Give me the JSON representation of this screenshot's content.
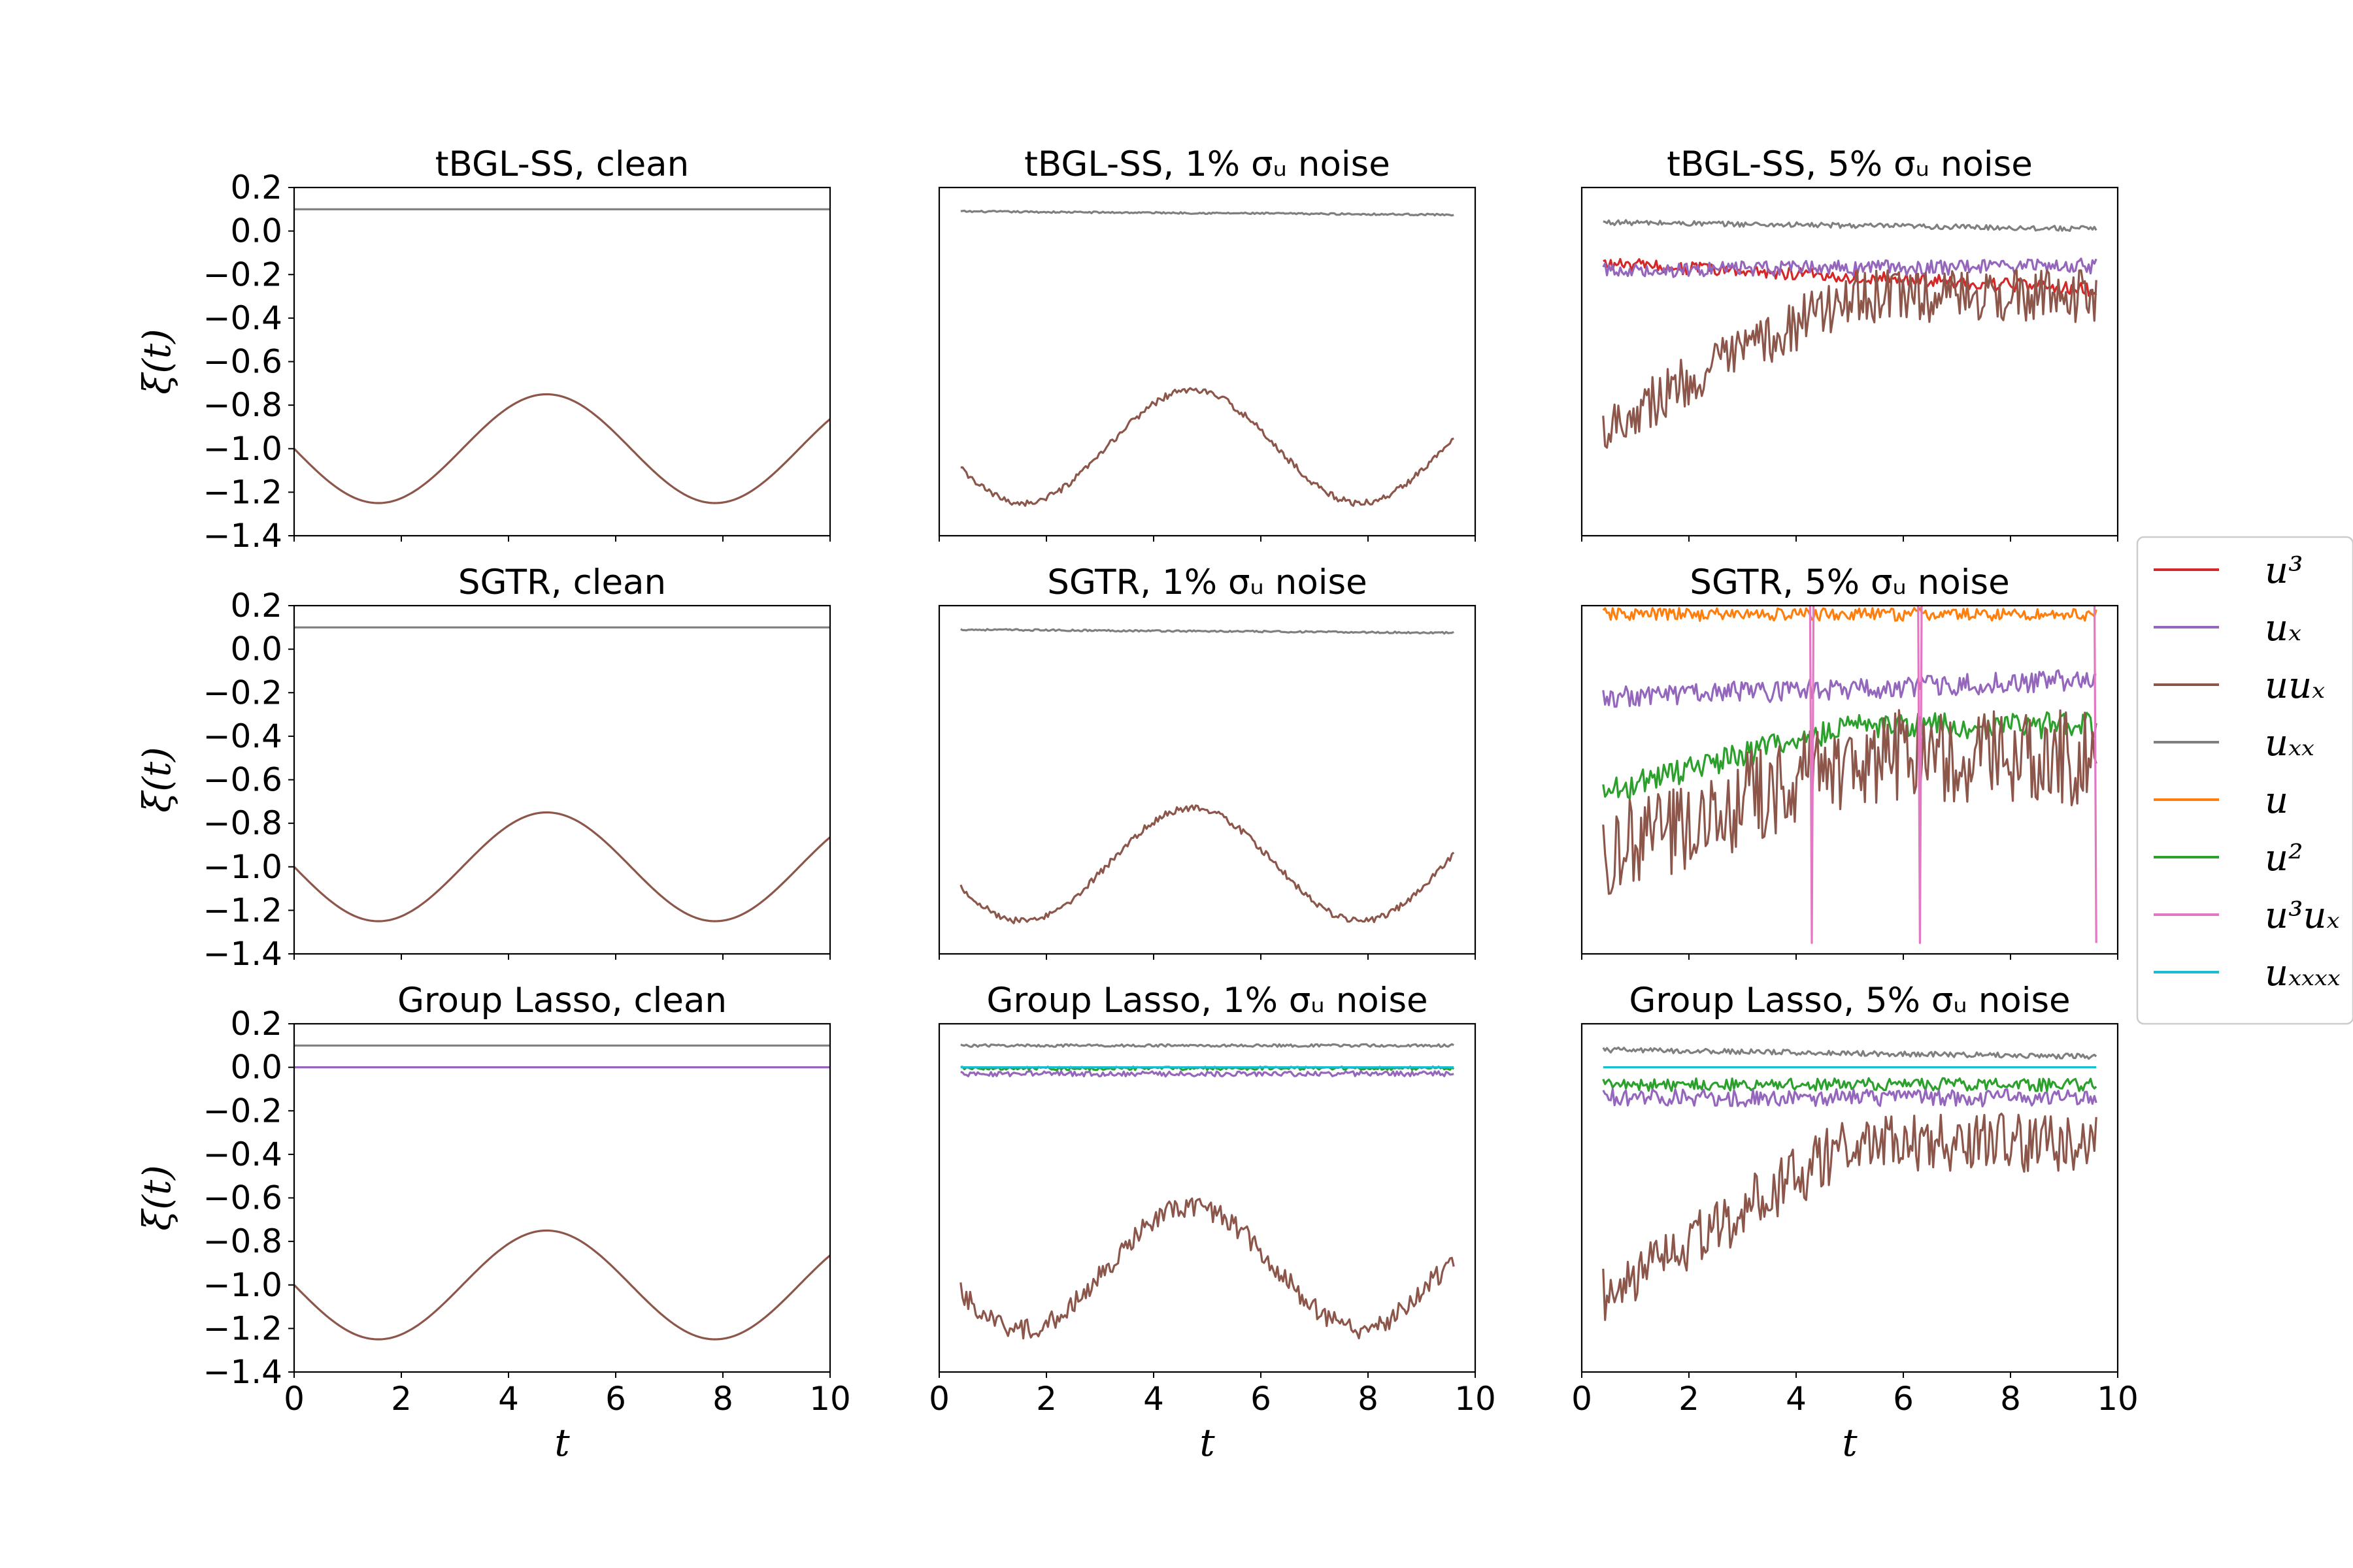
{
  "chart_data": {
    "type": "line",
    "colors": {
      "u^3": "#d62728",
      "u_x": "#9467bd",
      "uu_x": "#8c564b",
      "u_xx": "#7f7f7f",
      "u": "#ff7f0e",
      "u^2": "#2ca02c",
      "u^3u_x": "#e377c2",
      "u_xxxx": "#17becf"
    },
    "legend": [
      {
        "key": "u^3",
        "label": "u³"
      },
      {
        "key": "u_x",
        "label": "uₓ"
      },
      {
        "key": "uu_x",
        "label": "uuₓ"
      },
      {
        "key": "u_xx",
        "label": "uₓₓ"
      },
      {
        "key": "u",
        "label": "u"
      },
      {
        "key": "u^2",
        "label": "u²"
      },
      {
        "key": "u^3u_x",
        "label": "u³uₓ"
      },
      {
        "key": "u_xxxx",
        "label": "uₓₓₓₓ"
      }
    ],
    "legend_position": "right, outside, centered",
    "xlabel": "t",
    "ylabel": "ξ(t)",
    "xlim": [
      0,
      10
    ],
    "ylim": [
      -1.4,
      0.2
    ],
    "xticks": [
      "0",
      "2",
      "4",
      "6",
      "8",
      "10"
    ],
    "yticks": [
      "0.2",
      "0.0",
      "−0.2",
      "−0.4",
      "−0.6",
      "−0.8",
      "−1.0",
      "−1.2",
      "−1.4"
    ],
    "panels": [
      {
        "row": 0,
        "col": 0,
        "title": "tBGL-SS, clean",
        "t_range": [
          0,
          10
        ],
        "series": [
          {
            "key": "u_xx",
            "kind": "const",
            "value": 0.1
          },
          {
            "key": "uu_x",
            "kind": "sine",
            "offset": -1.0,
            "amp": -0.25
          }
        ]
      },
      {
        "row": 0,
        "col": 1,
        "title": "tBGL-SS, 1% σᵤ noise",
        "t_range": [
          0.4,
          9.6
        ],
        "series": [
          {
            "key": "u_xx",
            "kind": "const",
            "value": 0.09,
            "noise": 0.004,
            "trend": -0.015
          },
          {
            "key": "uu_x",
            "kind": "sine",
            "offset": -0.99,
            "amp": -0.26,
            "noise": 0.015
          }
        ]
      },
      {
        "row": 0,
        "col": 2,
        "title": "tBGL-SS, 5% σᵤ noise",
        "t_range": [
          0.4,
          9.6
        ],
        "series": [
          {
            "key": "u_xx",
            "kind": "const",
            "value": 0.04,
            "noise": 0.012,
            "trend": -0.03
          },
          {
            "key": "u^3",
            "kind": "const",
            "value": -0.15,
            "noise": 0.03,
            "trend": -0.12
          },
          {
            "key": "u_x",
            "kind": "const",
            "value": -0.18,
            "noise": 0.035,
            "trend": 0.02
          },
          {
            "key": "uu_x",
            "kind": "ramp",
            "start": -0.9,
            "end": -0.3,
            "noise": 0.12
          }
        ]
      },
      {
        "row": 1,
        "col": 0,
        "title": "SGTR, clean",
        "t_range": [
          0,
          10
        ],
        "series": [
          {
            "key": "u_xx",
            "kind": "const",
            "value": 0.1
          },
          {
            "key": "uu_x",
            "kind": "sine",
            "offset": -1.0,
            "amp": -0.25
          }
        ]
      },
      {
        "row": 1,
        "col": 1,
        "title": "SGTR,  1% σᵤ noise",
        "t_range": [
          0.4,
          9.6
        ],
        "series": [
          {
            "key": "u_xx",
            "kind": "const",
            "value": 0.09,
            "noise": 0.004,
            "trend": -0.015
          },
          {
            "key": "uu_x",
            "kind": "sine",
            "offset": -0.99,
            "amp": -0.26,
            "noise": 0.015
          }
        ]
      },
      {
        "row": 1,
        "col": 2,
        "title": "SGTR, 5% σᵤ noise",
        "t_range": [
          0.4,
          9.6
        ],
        "series": [
          {
            "key": "u",
            "kind": "const",
            "value": 0.16,
            "noise": 0.03
          },
          {
            "key": "u_x",
            "kind": "const",
            "value": -0.22,
            "noise": 0.05,
            "trend": 0.08
          },
          {
            "key": "u^2",
            "kind": "ramp",
            "start": -0.66,
            "end": -0.35,
            "noise": 0.06
          },
          {
            "key": "uu_x",
            "kind": "ramp",
            "start": -0.95,
            "end": -0.5,
            "noise": 0.22
          },
          {
            "key": "u^3u_x",
            "kind": "spikes",
            "value": 0.2,
            "spikes_at": [
              4.3,
              6.3,
              9.6
            ]
          }
        ]
      },
      {
        "row": 2,
        "col": 0,
        "title": "Group Lasso, clean",
        "t_range": [
          0,
          10
        ],
        "series": [
          {
            "key": "u_xx",
            "kind": "const",
            "value": 0.1
          },
          {
            "key": "u_x",
            "kind": "const",
            "value": 0.0
          },
          {
            "key": "uu_x",
            "kind": "sine",
            "offset": -1.0,
            "amp": -0.25
          }
        ]
      },
      {
        "row": 2,
        "col": 1,
        "title": "Group Lasso, 1% σᵤ noise",
        "t_range": [
          0.4,
          9.6
        ],
        "series": [
          {
            "key": "u_xx",
            "kind": "const",
            "value": 0.1,
            "noise": 0.006
          },
          {
            "key": "u_x",
            "kind": "const",
            "value": -0.03,
            "noise": 0.012
          },
          {
            "key": "u^2",
            "kind": "const",
            "value": -0.005,
            "noise": 0.008
          },
          {
            "key": "u_xxxx",
            "kind": "const",
            "value": 0.0
          },
          {
            "key": "uu_x",
            "kind": "sine",
            "offset": -0.92,
            "amp": -0.28,
            "noise": 0.05
          }
        ]
      },
      {
        "row": 2,
        "col": 2,
        "title": "Group Lasso, 5% σᵤ noise",
        "t_range": [
          0.4,
          9.6
        ],
        "series": [
          {
            "key": "u_xx",
            "kind": "const",
            "value": 0.08,
            "noise": 0.012,
            "trend": -0.03
          },
          {
            "key": "u^2",
            "kind": "const",
            "value": -0.08,
            "noise": 0.03
          },
          {
            "key": "u_x",
            "kind": "const",
            "value": -0.14,
            "noise": 0.04
          },
          {
            "key": "u_xxxx",
            "kind": "const",
            "value": 0.0
          },
          {
            "key": "uu_x",
            "kind": "ramp",
            "start": -1.05,
            "end": -0.35,
            "noise": 0.14
          }
        ]
      }
    ]
  }
}
